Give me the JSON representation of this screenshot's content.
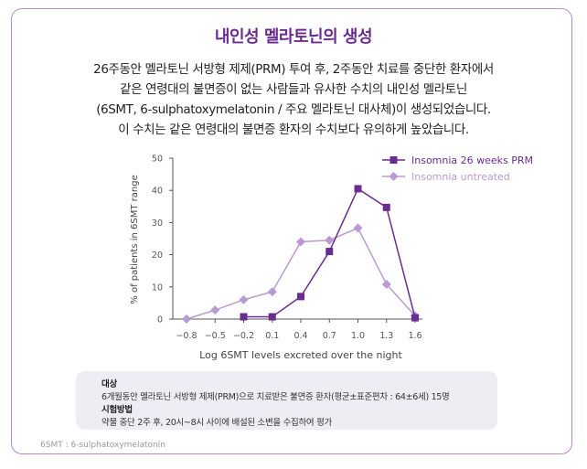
{
  "page": {
    "title": "내인성 멜라토닌의 생성",
    "description": [
      "26주동안 멜라토닌 서방형 제제(PRM) 투여 후, 2주동안 치료를 중단한 환자에서",
      "같은 연령대의 불면증이 없는 사람들과 유사한 수치의 내인성 멜라토닌",
      "(6SMT, 6-sulphatoxymelatonin / 주요 멜라토닌 대사체)이 생성되었습니다.",
      "이 수치는 같은 연령대의 불면증 환자의 수치보다 유의하게 높았습니다."
    ],
    "info": {
      "subject_heading": "대상",
      "subject_text": "6개월동안 멜라토닌 서방형 제제(PRM)으로 치료받은 불면증 환자(평균±표준편차 : 64±6세) 15명",
      "method_heading": "시험방법",
      "method_text": "약물 중단 2주 후, 20시~8시 사이에 배설된 소변을 수집하여 평가"
    },
    "footnote": "6SMT : 6-sulphatoxymelatonin"
  },
  "chart_data": {
    "type": "line",
    "title": "",
    "xlabel": "Log 6SMT levels excreted over the night",
    "ylabel": "% of patients in 6SMT range",
    "x": [
      -0.8,
      -0.5,
      -0.2,
      0.1,
      0.4,
      0.7,
      1.0,
      1.3,
      1.6
    ],
    "x_tick_labels": [
      "−0.8",
      "−0.5",
      "−0.2",
      "0.1",
      "0.4",
      "0.7",
      "1.0",
      "1.3",
      "1.6"
    ],
    "y_ticks": [
      0,
      10,
      20,
      30,
      40,
      50
    ],
    "ylim": [
      0,
      50
    ],
    "grid": false,
    "legend_position": "top-right",
    "series": [
      {
        "name": "Insomnia 26 weeks PRM",
        "color": "#6a2c91",
        "marker": "square",
        "points": [
          [
            -0.2,
            0.7
          ],
          [
            0.1,
            0.7
          ],
          [
            0.4,
            7
          ],
          [
            0.7,
            21
          ],
          [
            1.0,
            40.5
          ],
          [
            1.3,
            34.7
          ],
          [
            1.6,
            0.4
          ]
        ]
      },
      {
        "name": "Insomnia untreated",
        "color": "#b99ad2",
        "marker": "diamond",
        "points": [
          [
            -0.8,
            0
          ],
          [
            -0.5,
            2.8
          ],
          [
            -0.2,
            6
          ],
          [
            0.1,
            8.5
          ],
          [
            0.4,
            24
          ],
          [
            0.7,
            24.5
          ],
          [
            1.0,
            28.3
          ],
          [
            1.3,
            10.8
          ],
          [
            1.6,
            1
          ]
        ]
      }
    ]
  }
}
